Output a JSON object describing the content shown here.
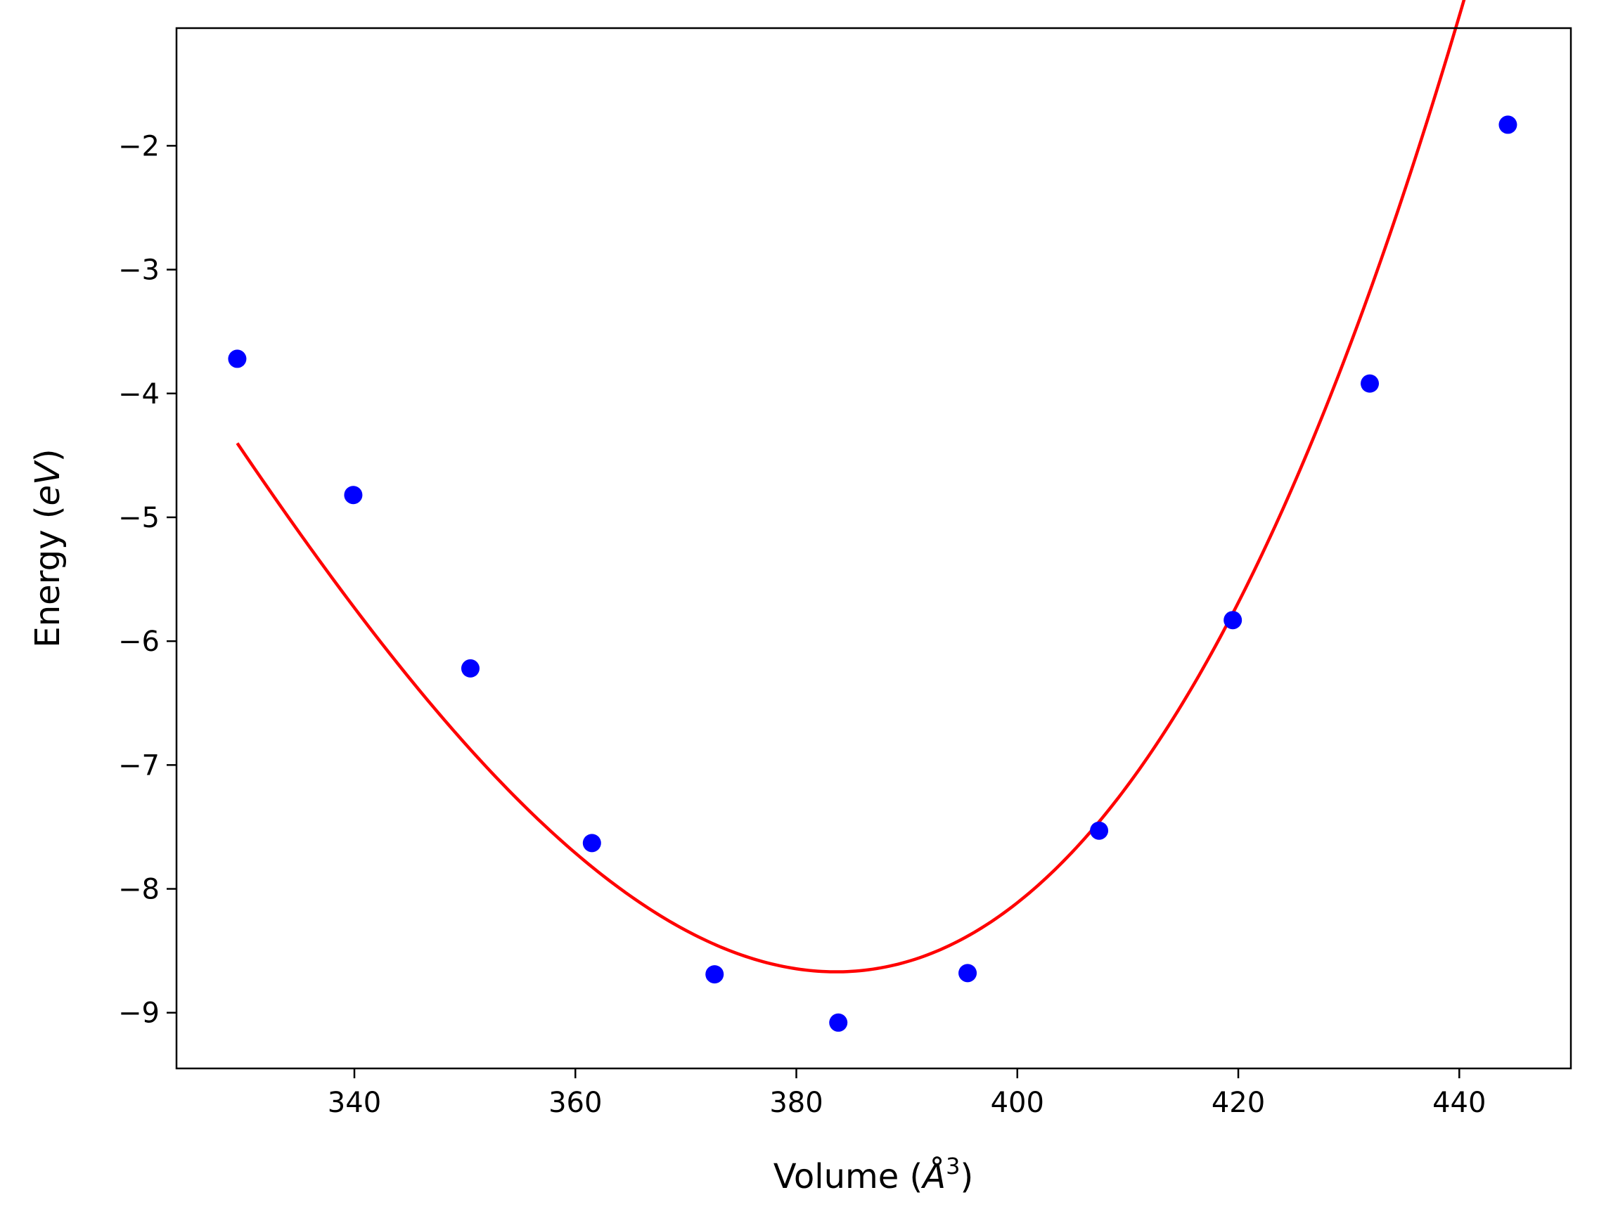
{
  "chart_data": {
    "type": "scatter",
    "xlabel": "Volume (Å³)",
    "ylabel": "Energy (eV)",
    "xlabel_parts": {
      "prefix": "Volume (",
      "var": "Å",
      "sup": "3",
      "suffix": ")"
    },
    "ylabel_parts": {
      "prefix": "Energy (",
      "var": "eV",
      "suffix": ")"
    },
    "xlim": [
      323.9,
      450.1
    ],
    "ylim": [
      -9.45,
      -1.05
    ],
    "xticks": [
      340,
      360,
      380,
      400,
      420,
      440
    ],
    "yticks": [
      -9,
      -8,
      -7,
      -6,
      -5,
      -4,
      -3,
      -2
    ],
    "ytick_labels": [
      "−9",
      "−8",
      "−7",
      "−6",
      "−5",
      "−4",
      "−3",
      "−2"
    ],
    "grid": false,
    "series": [
      {
        "kind": "points",
        "color": "#0000ff",
        "x": [
          329.4,
          339.9,
          350.5,
          361.5,
          372.6,
          383.8,
          395.5,
          407.4,
          419.5,
          431.9,
          444.4
        ],
        "y": [
          -3.72,
          -4.82,
          -6.22,
          -7.63,
          -8.69,
          -9.08,
          -8.68,
          -7.53,
          -5.83,
          -3.92,
          -1.83
        ]
      },
      {
        "kind": "fit-line",
        "color": "#ff0000",
        "fit": {
          "min_x": 383.6,
          "min_y": -8.67,
          "curvature": 0.00193,
          "skew": 8.8e-06
        },
        "x_range": [
          329.4,
          444.4
        ]
      }
    ]
  }
}
